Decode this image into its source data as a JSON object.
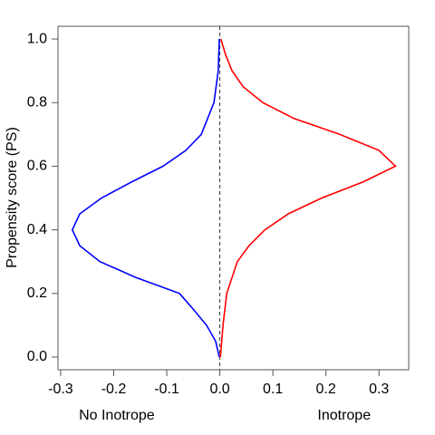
{
  "chart_data": {
    "type": "line",
    "ylabel": "Propensity score (PS)",
    "xlim": [
      -0.305,
      0.356
    ],
    "ylim": [
      -0.04,
      1.04
    ],
    "xticks": [
      -0.3,
      -0.2,
      -0.1,
      {
        "value": 0,
        "label": "0.0"
      },
      0.1,
      0.2,
      0.3
    ],
    "yticks": [
      {
        "value": 0,
        "label": "0.0"
      },
      0.2,
      0.4,
      0.6,
      0.8,
      {
        "value": 1,
        "label": "1.0"
      }
    ],
    "vline": 0,
    "series": [
      {
        "name": "No Inotrope",
        "color": "#0000ff",
        "x": [
          -0.001,
          -0.008,
          -0.025,
          -0.05,
          -0.076,
          -0.158,
          -0.226,
          -0.264,
          -0.278,
          -0.264,
          -0.223,
          -0.167,
          -0.107,
          -0.064,
          -0.035,
          -0.011,
          -0.003,
          -0.001
        ],
        "y": [
          0,
          0.05,
          0.1,
          0.15,
          0.2,
          0.25,
          0.3,
          0.35,
          0.4,
          0.45,
          0.5,
          0.55,
          0.6,
          0.65,
          0.7,
          0.8,
          0.9,
          1.0
        ]
      },
      {
        "name": "Inotrope",
        "color": "#ff0000",
        "x": [
          0.001,
          0.006,
          0.013,
          0.033,
          0.055,
          0.085,
          0.129,
          0.192,
          0.269,
          0.331,
          0.3,
          0.226,
          0.14,
          0.081,
          0.044,
          0.023,
          0.011,
          0.002
        ],
        "y": [
          0,
          0.1,
          0.2,
          0.3,
          0.35,
          0.4,
          0.45,
          0.5,
          0.55,
          0.6,
          0.65,
          0.7,
          0.75,
          0.8,
          0.85,
          0.9,
          0.95,
          1.0
        ]
      }
    ]
  }
}
